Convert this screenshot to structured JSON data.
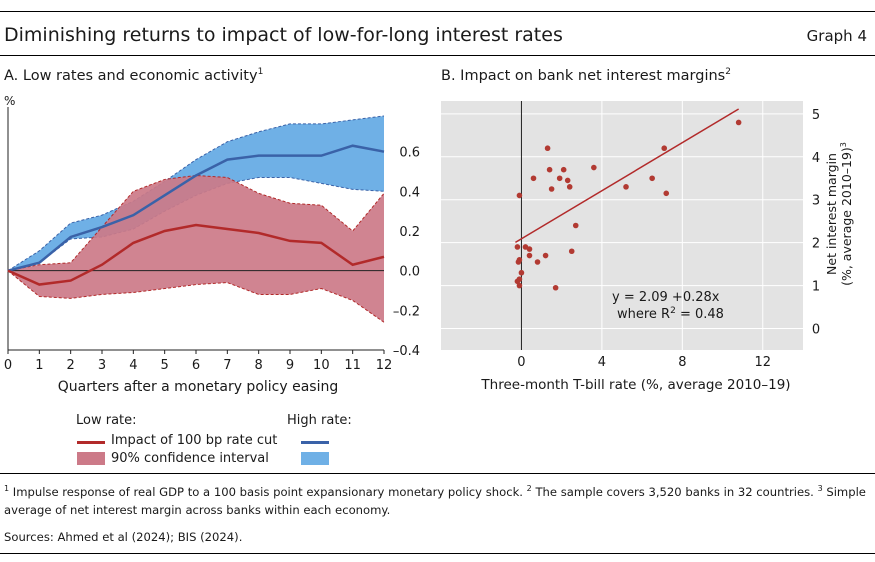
{
  "header": {
    "title": "Diminishing returns to impact of low-for-long interest rates",
    "graph_number": "Graph 4"
  },
  "panel_a": {
    "title": "A. Low rates and economic activity",
    "title_sup": "1",
    "unit": "%"
  },
  "panel_b": {
    "title": "B. Impact on bank net interest margins",
    "title_sup": "2",
    "equation_line1": "y = 2.09 +0.28x",
    "equation_line2_prefix": "where R",
    "equation_line2_sup": "2",
    "equation_line2_suffix": " = 0.48"
  },
  "legend": {
    "low_rate_header": "Low rate:",
    "high_rate_header": "High rate:",
    "line_label": "Impact of 100 bp rate cut",
    "band_label": "90% confidence interval"
  },
  "footnotes": {
    "f1_num": "1",
    "f1_text": " Impulse response of real GDP to a 100 basis point expansionary monetary policy shock. ",
    "f2_num": "2",
    "f2_text": " The sample covers 3,520 banks in 32 countries. ",
    "f3_num": "3",
    "f3_text": " Simple average of net interest margin across banks within each economy.",
    "sources": "Sources: Ahmed et al (2024); BIS (2024)."
  },
  "colors": {
    "low_line": "#b22a2a",
    "low_band": "#cc7a88",
    "high_line": "#3a62a8",
    "high_band": "#6fb0e6",
    "panel_bg": "#e3e3e3",
    "scatter_dot": "#b23a32"
  },
  "chart_data": [
    {
      "type": "line",
      "title": "A. Low rates and economic activity",
      "xlabel": "Quarters after a monetary policy easing",
      "ylabel": "%",
      "y_axis_side": "right",
      "x": [
        0,
        1,
        2,
        3,
        4,
        5,
        6,
        7,
        8,
        9,
        10,
        11,
        12
      ],
      "xlim": [
        0,
        12
      ],
      "ylim": [
        -0.4,
        0.8
      ],
      "y_ticks": [
        -0.4,
        -0.2,
        0.0,
        0.2,
        0.4,
        0.6
      ],
      "y_tick_labels": [
        "–0.4",
        "–0.2",
        "0.0",
        "0.2",
        "0.4",
        "0.6"
      ],
      "x_tick_labels": [
        "0",
        "1",
        "2",
        "3",
        "4",
        "5",
        "6",
        "7",
        "8",
        "9",
        "10",
        "11",
        "12"
      ],
      "series": [
        {
          "name": "Low rate: Impact of 100 bp rate cut",
          "values": [
            0.0,
            -0.07,
            -0.05,
            0.03,
            0.14,
            0.2,
            0.23,
            0.21,
            0.19,
            0.15,
            0.14,
            0.03,
            0.07
          ],
          "lower": [
            0.0,
            -0.13,
            -0.14,
            -0.12,
            -0.11,
            -0.09,
            -0.07,
            -0.06,
            -0.12,
            -0.12,
            -0.09,
            -0.15,
            -0.26
          ],
          "upper": [
            0.0,
            0.03,
            0.04,
            0.22,
            0.4,
            0.46,
            0.48,
            0.47,
            0.39,
            0.34,
            0.33,
            0.2,
            0.39
          ]
        },
        {
          "name": "High rate",
          "values": [
            0.0,
            0.04,
            0.17,
            0.22,
            0.28,
            0.38,
            0.48,
            0.56,
            0.58,
            0.58,
            0.58,
            0.63,
            0.6
          ],
          "lower": [
            0.0,
            0.04,
            0.16,
            0.17,
            0.21,
            0.3,
            0.38,
            0.44,
            0.47,
            0.47,
            0.44,
            0.41,
            0.4
          ],
          "upper": [
            0.0,
            0.1,
            0.24,
            0.28,
            0.35,
            0.45,
            0.56,
            0.65,
            0.7,
            0.74,
            0.74,
            0.76,
            0.78
          ]
        }
      ]
    },
    {
      "type": "scatter",
      "title": "B. Impact on bank net interest margins",
      "xlabel": "Three-month T-bill rate (%, average 2010–19)",
      "ylabel": "Net interest margin (%, average 2010–19)",
      "ylabel_sup": "3",
      "y_axis_side": "right",
      "xlim": [
        -4,
        14
      ],
      "ylim": [
        -0.5,
        5.3
      ],
      "x_ticks": [
        0,
        4,
        8,
        12
      ],
      "y_ticks": [
        0,
        1,
        2,
        3,
        4,
        5
      ],
      "regression": {
        "intercept": 2.09,
        "slope": 0.28,
        "r2": 0.48,
        "x_range": [
          -0.3,
          10.8
        ]
      },
      "points": [
        {
          "x": -0.2,
          "y": 1.1
        },
        {
          "x": -0.1,
          "y": 1.0
        },
        {
          "x": -0.1,
          "y": 1.15
        },
        {
          "x": 0.0,
          "y": 1.3
        },
        {
          "x": -0.15,
          "y": 1.55
        },
        {
          "x": -0.1,
          "y": 1.6
        },
        {
          "x": -0.2,
          "y": 1.9
        },
        {
          "x": -0.1,
          "y": 3.1
        },
        {
          "x": 0.2,
          "y": 1.9
        },
        {
          "x": 0.4,
          "y": 1.85
        },
        {
          "x": 0.4,
          "y": 1.7
        },
        {
          "x": 0.6,
          "y": 3.5
        },
        {
          "x": 0.8,
          "y": 1.55
        },
        {
          "x": 1.2,
          "y": 1.7
        },
        {
          "x": 1.3,
          "y": 4.2
        },
        {
          "x": 1.4,
          "y": 3.7
        },
        {
          "x": 1.5,
          "y": 3.25
        },
        {
          "x": 1.7,
          "y": 0.95
        },
        {
          "x": 1.9,
          "y": 3.5
        },
        {
          "x": 2.1,
          "y": 3.7
        },
        {
          "x": 2.3,
          "y": 3.45
        },
        {
          "x": 2.4,
          "y": 3.3
        },
        {
          "x": 2.5,
          "y": 1.8
        },
        {
          "x": 2.7,
          "y": 2.4
        },
        {
          "x": 3.6,
          "y": 3.75
        },
        {
          "x": 5.2,
          "y": 3.3
        },
        {
          "x": 6.5,
          "y": 3.5
        },
        {
          "x": 7.1,
          "y": 4.2
        },
        {
          "x": 7.2,
          "y": 3.15
        },
        {
          "x": 10.8,
          "y": 4.8
        }
      ]
    }
  ]
}
